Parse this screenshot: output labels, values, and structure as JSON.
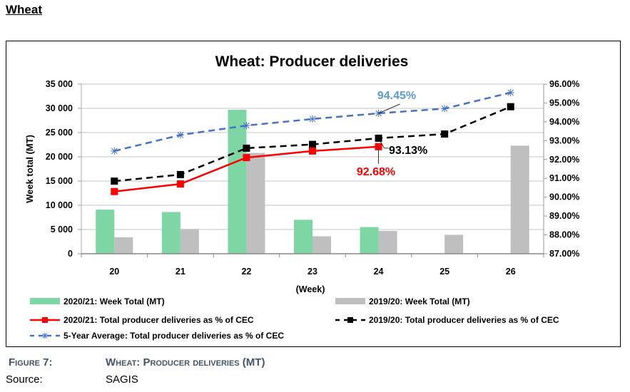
{
  "page": {
    "heading": "Wheat",
    "figure_label": "Figure 7:",
    "figure_title": "Wheat: Producer deliveries (MT)",
    "source_label": "Source:",
    "source_value": "SAGIS"
  },
  "colors": {
    "green_bar": "#7fd6a5",
    "gray_bar": "#bfbfbf",
    "red_line": "#ff0000",
    "black_line": "#000000",
    "blue_line": "#4472c4",
    "blue_label": "#5b9bd5",
    "grid": "#d9d9d9",
    "caption": "#44546a"
  },
  "chart_data": {
    "type": "bar",
    "title": "Wheat: Producer deliveries",
    "xlabel": "(Week)",
    "ylabel": "Week total (MT)",
    "y2label": "",
    "categories": [
      "20",
      "21",
      "22",
      "23",
      "24",
      "25",
      "26"
    ],
    "ylim": [
      0,
      35000
    ],
    "y2lim": [
      87,
      96
    ],
    "yticks": [
      "0",
      "5 000",
      "10 000",
      "15 000",
      "20 000",
      "25 000",
      "30 000",
      "35 000"
    ],
    "ytick_values": [
      0,
      5000,
      10000,
      15000,
      20000,
      25000,
      30000,
      35000
    ],
    "y2ticks": [
      "87.00%",
      "88.00%",
      "89.00%",
      "90.00%",
      "91.00%",
      "92.00%",
      "93.00%",
      "94.00%",
      "95.00%",
      "96.00%"
    ],
    "y2tick_values": [
      87,
      88,
      89,
      90,
      91,
      92,
      93,
      94,
      95,
      96
    ],
    "grid": true,
    "legend_position": "bottom",
    "series": [
      {
        "name": "2020/21: Week Total (MT)",
        "type": "bar",
        "axis": "left",
        "values": [
          9100,
          8600,
          29700,
          7000,
          5500,
          null,
          null
        ]
      },
      {
        "name": "2019/20: Week Total (MT)",
        "type": "bar",
        "axis": "left",
        "values": [
          3400,
          5100,
          20800,
          3600,
          4700,
          3900,
          22300
        ]
      },
      {
        "name": "2020/21: Total producer deliveries as % of CEC",
        "type": "line",
        "axis": "right",
        "values": [
          90.3,
          90.7,
          92.1,
          92.45,
          92.68,
          null,
          null
        ]
      },
      {
        "name": "2019/20: Total producer deliveries as % of CEC",
        "type": "line",
        "axis": "right",
        "values": [
          90.85,
          91.2,
          92.6,
          92.8,
          93.13,
          93.35,
          94.8
        ]
      },
      {
        "name": "5-Year Average: Total producer deliveries as % of CEC",
        "type": "line",
        "axis": "right",
        "values": [
          92.45,
          93.3,
          93.8,
          94.15,
          94.45,
          94.7,
          95.55
        ]
      }
    ],
    "annotations": [
      {
        "text": "94.45%",
        "series": 4,
        "index": 4
      },
      {
        "text": "93.13%",
        "series": 3,
        "index": 4
      },
      {
        "text": "92.68%",
        "series": 2,
        "index": 4
      }
    ]
  }
}
